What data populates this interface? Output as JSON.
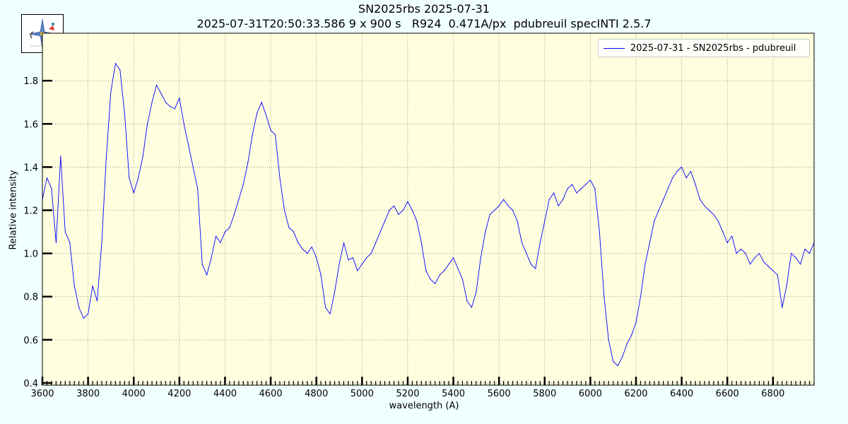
{
  "page": {
    "title_line1": "SN2025rbs 2025-07-31",
    "title_line2": "2025-07-31T20:50:33.586 9 x 900 s   R924  0.471A/px  pdubreuil specINTI 2.5.7"
  },
  "colors": {
    "background": "#f0ffff",
    "plot_background": "#ffffe0",
    "series": "#0000ff",
    "grid": "#808080"
  },
  "chart_data": {
    "type": "line",
    "xlabel": "wavelength (A)",
    "ylabel": "Relative intensity",
    "xlim": [
      3600,
      6980
    ],
    "ylim": [
      0.39,
      2.02
    ],
    "xticks": [
      3600,
      3800,
      4000,
      4200,
      4400,
      4600,
      4800,
      5000,
      5200,
      5400,
      5600,
      5800,
      6000,
      6200,
      6400,
      6600,
      6800
    ],
    "yticks": [
      0.4,
      0.6,
      0.8,
      1.0,
      1.2,
      1.4,
      1.6,
      1.8
    ],
    "ytick_labels": [
      "0.4",
      "0.6",
      "0.8",
      "1.0",
      "1.2",
      "1.4",
      "1.6",
      "1.8"
    ],
    "grid": true,
    "legend_position": "top-right",
    "series": [
      {
        "name": "2025-07-31 - SN2025rbs - pdubreuil",
        "color": "#0000ff",
        "x": [
          3600,
          3620,
          3640,
          3660,
          3680,
          3700,
          3720,
          3740,
          3760,
          3780,
          3800,
          3820,
          3840,
          3860,
          3880,
          3900,
          3920,
          3940,
          3960,
          3980,
          4000,
          4020,
          4040,
          4060,
          4080,
          4100,
          4120,
          4140,
          4160,
          4180,
          4200,
          4220,
          4240,
          4260,
          4280,
          4300,
          4320,
          4340,
          4360,
          4380,
          4400,
          4420,
          4440,
          4460,
          4480,
          4500,
          4520,
          4540,
          4560,
          4580,
          4600,
          4620,
          4640,
          4660,
          4680,
          4700,
          4720,
          4740,
          4760,
          4780,
          4800,
          4820,
          4840,
          4860,
          4880,
          4900,
          4920,
          4940,
          4960,
          4980,
          5000,
          5020,
          5040,
          5060,
          5080,
          5100,
          5120,
          5140,
          5160,
          5180,
          5200,
          5220,
          5240,
          5260,
          5280,
          5300,
          5320,
          5340,
          5360,
          5380,
          5400,
          5420,
          5440,
          5460,
          5480,
          5500,
          5520,
          5540,
          5560,
          5580,
          5600,
          5620,
          5640,
          5660,
          5680,
          5700,
          5720,
          5740,
          5760,
          5780,
          5800,
          5820,
          5840,
          5860,
          5880,
          5900,
          5920,
          5940,
          5960,
          5980,
          6000,
          6020,
          6040,
          6060,
          6080,
          6100,
          6120,
          6140,
          6160,
          6180,
          6200,
          6220,
          6240,
          6260,
          6280,
          6300,
          6320,
          6340,
          6360,
          6380,
          6400,
          6420,
          6440,
          6460,
          6480,
          6500,
          6520,
          6540,
          6560,
          6580,
          6600,
          6620,
          6640,
          6660,
          6680,
          6700,
          6720,
          6740,
          6760,
          6780,
          6800,
          6820,
          6840,
          6860,
          6880,
          6900,
          6920,
          6940,
          6960,
          6980
        ],
        "y": [
          1.25,
          1.35,
          1.3,
          1.05,
          1.45,
          1.1,
          1.05,
          0.85,
          0.75,
          0.7,
          0.72,
          0.85,
          0.78,
          1.05,
          1.45,
          1.75,
          1.88,
          1.85,
          1.65,
          1.35,
          1.28,
          1.35,
          1.45,
          1.6,
          1.7,
          1.78,
          1.74,
          1.7,
          1.68,
          1.67,
          1.72,
          1.6,
          1.5,
          1.4,
          1.3,
          0.95,
          0.9,
          0.98,
          1.08,
          1.05,
          1.1,
          1.12,
          1.18,
          1.25,
          1.32,
          1.42,
          1.55,
          1.65,
          1.7,
          1.64,
          1.57,
          1.55,
          1.35,
          1.2,
          1.12,
          1.1,
          1.05,
          1.02,
          1.0,
          1.03,
          0.98,
          0.9,
          0.75,
          0.72,
          0.82,
          0.95,
          1.05,
          0.97,
          0.98,
          0.92,
          0.95,
          0.98,
          1.0,
          1.05,
          1.1,
          1.15,
          1.2,
          1.22,
          1.18,
          1.2,
          1.24,
          1.2,
          1.15,
          1.05,
          0.92,
          0.88,
          0.86,
          0.9,
          0.92,
          0.95,
          0.98,
          0.93,
          0.88,
          0.78,
          0.75,
          0.82,
          0.98,
          1.1,
          1.18,
          1.2,
          1.22,
          1.25,
          1.22,
          1.2,
          1.15,
          1.05,
          1.0,
          0.95,
          0.93,
          1.05,
          1.15,
          1.25,
          1.28,
          1.22,
          1.25,
          1.3,
          1.32,
          1.28,
          1.3,
          1.32,
          1.34,
          1.3,
          1.1,
          0.8,
          0.6,
          0.5,
          0.48,
          0.52,
          0.58,
          0.62,
          0.68,
          0.8,
          0.95,
          1.05,
          1.15,
          1.2,
          1.25,
          1.3,
          1.35,
          1.38,
          1.4,
          1.35,
          1.38,
          1.32,
          1.25,
          1.22,
          1.2,
          1.18,
          1.15,
          1.1,
          1.05,
          1.08,
          1.0,
          1.02,
          1.0,
          0.95,
          0.98,
          1.0,
          0.96,
          0.94,
          0.92,
          0.9,
          0.75,
          0.85,
          1.0,
          0.98,
          0.95,
          1.02,
          1.0,
          1.05
        ]
      }
    ]
  }
}
